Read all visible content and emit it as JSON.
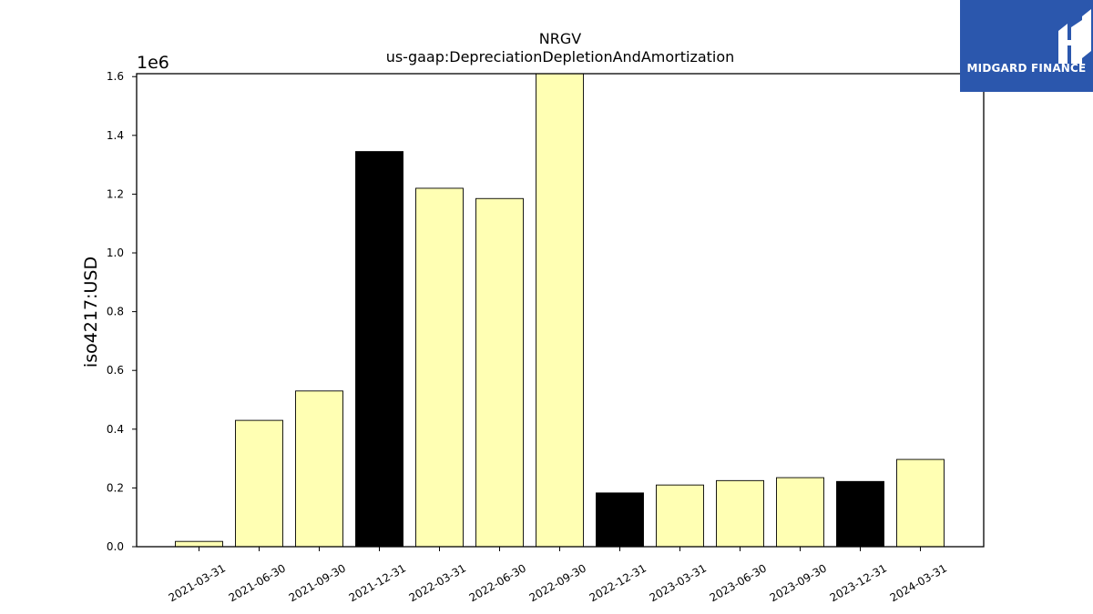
{
  "chart_data": {
    "type": "bar",
    "title": "NRGV",
    "subtitle": "us-gaap:DepreciationDepletionAndAmortization",
    "ylabel": "iso4217:USD",
    "xlabel": "",
    "y_multiplier_label": "1e6",
    "categories": [
      "2021-03-31",
      "2021-06-30",
      "2021-09-30",
      "2021-12-31",
      "2022-03-31",
      "2022-06-30",
      "2022-09-30",
      "2022-12-31",
      "2023-03-31",
      "2023-06-30",
      "2023-09-30",
      "2023-12-31",
      "2024-03-31"
    ],
    "values": [
      18000,
      430000,
      530000,
      1345000,
      1220000,
      1185000,
      1610000,
      183000,
      210000,
      225000,
      235000,
      222000,
      297000
    ],
    "annual": [
      false,
      false,
      false,
      true,
      false,
      false,
      false,
      true,
      false,
      false,
      false,
      true,
      false
    ],
    "ylim": [
      0,
      1610000
    ],
    "yticks": [
      0,
      200000,
      400000,
      600000,
      800000,
      1000000,
      1200000,
      1400000,
      1600000
    ],
    "ytick_labels": [
      "0.0",
      "0.2",
      "0.4",
      "0.6",
      "0.8",
      "1.0",
      "1.2",
      "1.4",
      "1.6"
    ],
    "colors": {
      "quarter": "#ffffb3",
      "annual": "#000000",
      "edge": "#000000"
    },
    "grid": false,
    "legend": "none"
  },
  "logo": {
    "text": "MIDGARD FINANCE",
    "bg": "#2b57ad"
  }
}
